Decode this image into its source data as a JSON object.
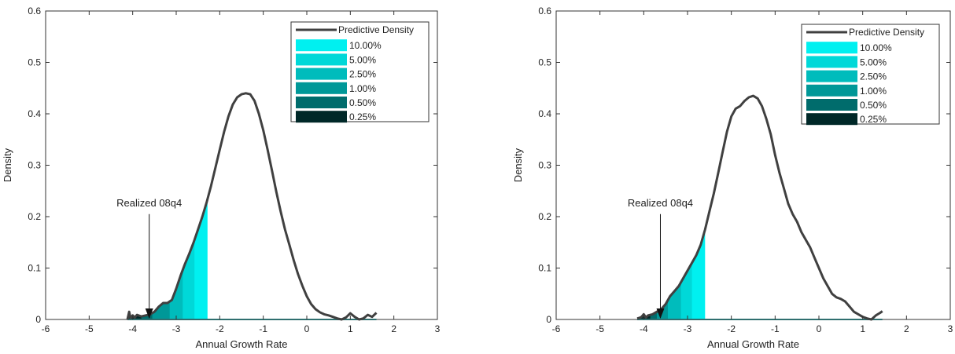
{
  "colors": {
    "density_line": "#404040",
    "axis": "#333333",
    "quantile_fills": [
      "#00f0f0",
      "#00d8d8",
      "#00bcbc",
      "#009898",
      "#006c6c",
      "#002828"
    ]
  },
  "chart_data": [
    {
      "type": "area",
      "title": "",
      "xlabel": "Annual Growth Rate",
      "ylabel": "Density",
      "xlim": [
        -6,
        3
      ],
      "ylim": [
        0,
        0.6
      ],
      "xticks": [
        "-6",
        "-5",
        "-4",
        "-3",
        "-2",
        "-1",
        "0",
        "1",
        "2",
        "3"
      ],
      "yticks": [
        "0",
        "0.1",
        "0.2",
        "0.3",
        "0.4",
        "0.5",
        "0.6"
      ],
      "grid": false,
      "legend_position": "top-right",
      "legend": [
        "Predictive Density",
        "10.00%",
        "5.00%",
        "2.50%",
        "1.00%",
        "0.50%",
        "0.25%"
      ],
      "series": [
        {
          "name": "Predictive Density",
          "x": [
            -4.12,
            -4.08,
            -4.05,
            -4.0,
            -3.95,
            -3.9,
            -3.8,
            -3.7,
            -3.6,
            -3.5,
            -3.4,
            -3.3,
            -3.2,
            -3.1,
            -3.0,
            -2.9,
            -2.8,
            -2.7,
            -2.6,
            -2.5,
            -2.4,
            -2.3,
            -2.2,
            -2.1,
            -2.0,
            -1.9,
            -1.8,
            -1.7,
            -1.6,
            -1.5,
            -1.4,
            -1.3,
            -1.2,
            -1.1,
            -1.0,
            -0.9,
            -0.8,
            -0.7,
            -0.6,
            -0.5,
            -0.4,
            -0.3,
            -0.2,
            -0.1,
            0.0,
            0.1,
            0.2,
            0.3,
            0.4,
            0.5,
            0.6,
            0.7,
            0.8,
            0.9,
            1.0,
            1.1,
            1.2,
            1.3,
            1.4,
            1.5,
            1.6
          ],
          "y": [
            0.0,
            0.015,
            0.003,
            0.008,
            0.004,
            0.009,
            0.006,
            0.008,
            0.01,
            0.015,
            0.025,
            0.032,
            0.032,
            0.038,
            0.06,
            0.085,
            0.108,
            0.128,
            0.15,
            0.175,
            0.2,
            0.228,
            0.26,
            0.295,
            0.33,
            0.365,
            0.395,
            0.418,
            0.432,
            0.438,
            0.44,
            0.438,
            0.425,
            0.4,
            0.368,
            0.33,
            0.29,
            0.248,
            0.21,
            0.175,
            0.145,
            0.115,
            0.088,
            0.065,
            0.045,
            0.03,
            0.02,
            0.014,
            0.01,
            0.008,
            0.005,
            0.002,
            0.0,
            0.004,
            0.012,
            0.005,
            0.0,
            0.002,
            0.009,
            0.005,
            0.013
          ]
        }
      ],
      "quantile_bounds": [
        {
          "label": "10.00%",
          "x_max": -2.28
        },
        {
          "label": "5.00%",
          "x_max": -2.58
        },
        {
          "label": "2.50%",
          "x_max": -2.85
        },
        {
          "label": "1.00%",
          "x_max": -3.15
        },
        {
          "label": "0.50%",
          "x_max": -3.55
        },
        {
          "label": "0.25%",
          "x_max": -3.8
        }
      ],
      "shade_from": -4.12,
      "annotation": {
        "text": "Realized 08q4",
        "x": -3.62,
        "y": 0.0
      }
    },
    {
      "type": "area",
      "title": "",
      "xlabel": "Annual Growth Rate",
      "ylabel": "Density",
      "xlim": [
        -6,
        3
      ],
      "ylim": [
        0,
        0.6
      ],
      "xticks": [
        "-6",
        "-5",
        "-4",
        "-3",
        "-2",
        "-1",
        "0",
        "1",
        "2",
        "3"
      ],
      "yticks": [
        "0",
        "0.1",
        "0.2",
        "0.3",
        "0.4",
        "0.5",
        "0.6"
      ],
      "grid": false,
      "legend_position": "top-right",
      "legend": [
        "Predictive Density",
        "10.00%",
        "5.00%",
        "2.50%",
        "1.00%",
        "0.50%",
        "0.25%"
      ],
      "series": [
        {
          "name": "Predictive Density",
          "x": [
            -4.15,
            -4.1,
            -4.05,
            -4.0,
            -3.95,
            -3.9,
            -3.8,
            -3.7,
            -3.6,
            -3.5,
            -3.4,
            -3.3,
            -3.2,
            -3.1,
            -3.0,
            -2.9,
            -2.8,
            -2.7,
            -2.6,
            -2.5,
            -2.4,
            -2.3,
            -2.2,
            -2.1,
            -2.0,
            -1.9,
            -1.8,
            -1.7,
            -1.6,
            -1.5,
            -1.4,
            -1.3,
            -1.2,
            -1.1,
            -1.0,
            -0.9,
            -0.8,
            -0.7,
            -0.6,
            -0.5,
            -0.4,
            -0.3,
            -0.2,
            -0.1,
            0.0,
            0.1,
            0.2,
            0.3,
            0.4,
            0.5,
            0.6,
            0.7,
            0.8,
            0.9,
            1.0,
            1.1,
            1.2,
            1.3,
            1.4,
            1.45
          ],
          "y": [
            0.002,
            0.003,
            0.005,
            0.01,
            0.004,
            0.008,
            0.01,
            0.015,
            0.02,
            0.03,
            0.045,
            0.055,
            0.065,
            0.08,
            0.095,
            0.11,
            0.125,
            0.145,
            0.175,
            0.21,
            0.245,
            0.285,
            0.325,
            0.365,
            0.395,
            0.41,
            0.415,
            0.425,
            0.432,
            0.435,
            0.43,
            0.415,
            0.39,
            0.36,
            0.32,
            0.285,
            0.255,
            0.225,
            0.205,
            0.19,
            0.17,
            0.155,
            0.14,
            0.12,
            0.1,
            0.08,
            0.065,
            0.05,
            0.043,
            0.04,
            0.035,
            0.025,
            0.015,
            0.01,
            0.005,
            0.002,
            0.0,
            0.008,
            0.013,
            0.016
          ]
        }
      ],
      "quantile_bounds": [
        {
          "label": "10.00%",
          "x_max": -2.6
        },
        {
          "label": "5.00%",
          "x_max": -2.9
        },
        {
          "label": "2.50%",
          "x_max": -3.15
        },
        {
          "label": "1.00%",
          "x_max": -3.45
        },
        {
          "label": "0.50%",
          "x_max": -3.7
        },
        {
          "label": "0.25%",
          "x_max": -3.85
        }
      ],
      "shade_from": -4.15,
      "annotation": {
        "text": "Realized 08q4",
        "x": -3.62,
        "y": 0.0
      }
    }
  ]
}
